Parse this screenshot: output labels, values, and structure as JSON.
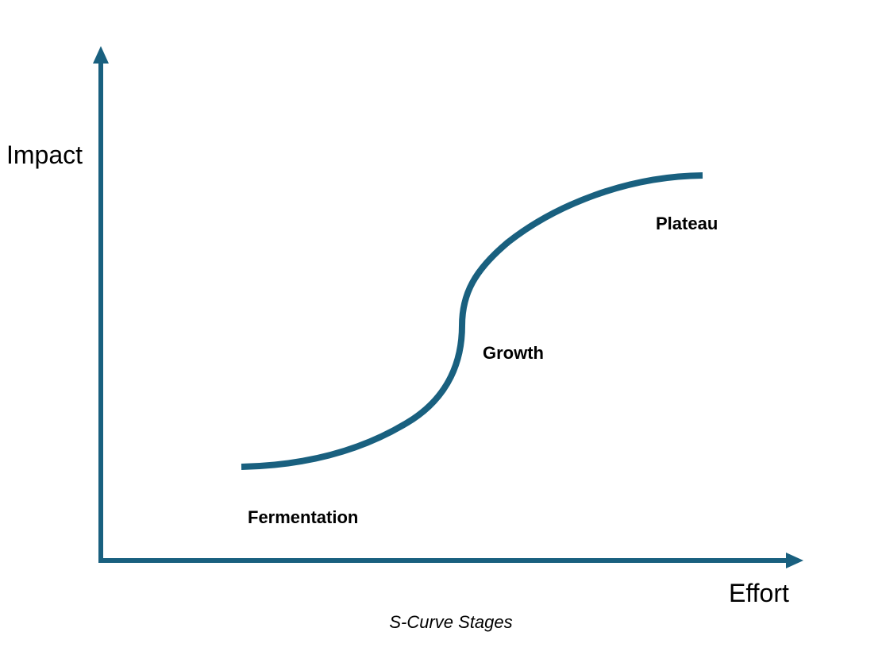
{
  "diagram": {
    "y_axis_label": "Impact",
    "x_axis_label": "Effort",
    "caption": "S-Curve Stages",
    "stages": [
      {
        "label": "Fermentation"
      },
      {
        "label": "Growth"
      },
      {
        "label": "Plateau"
      }
    ],
    "colors": {
      "axis": "#19607f",
      "curve": "#19607f",
      "text": "#000000",
      "background": "#ffffff"
    }
  }
}
